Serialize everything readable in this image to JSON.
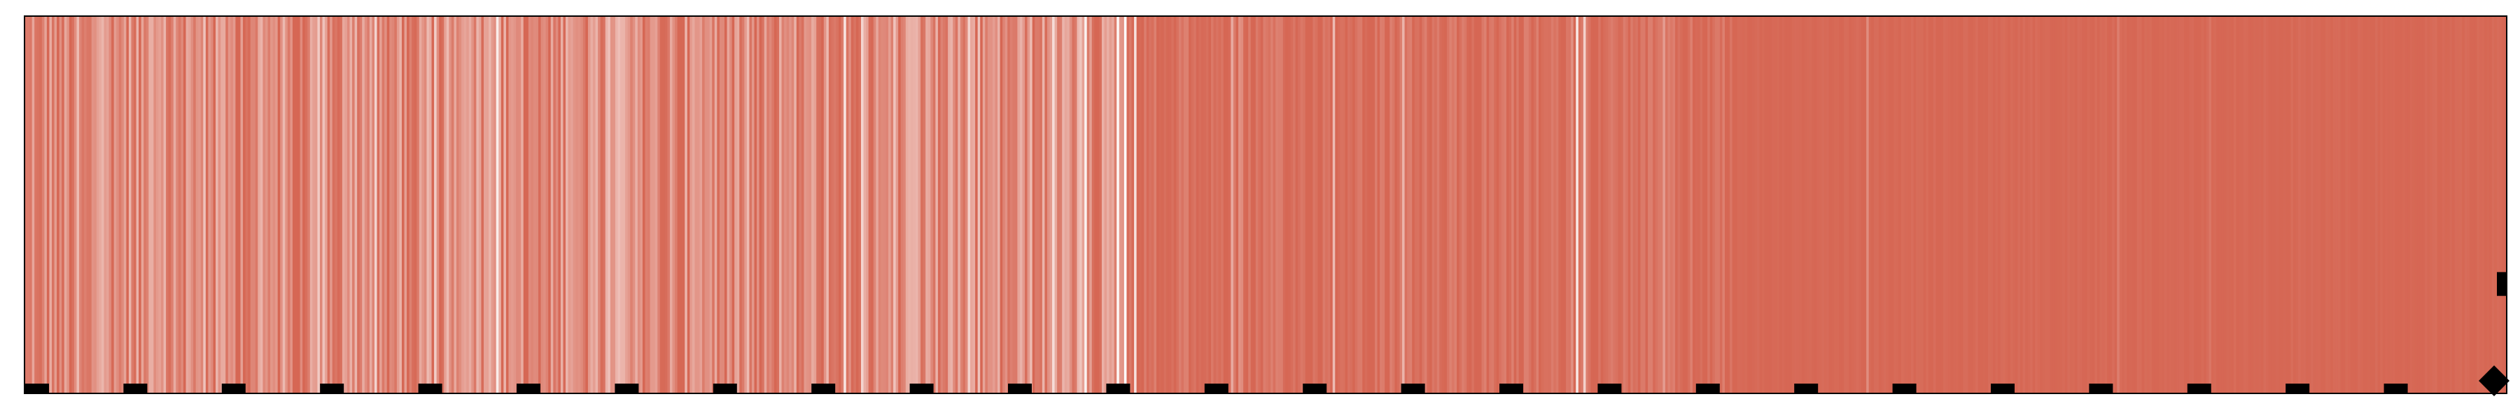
{
  "chart_data": {
    "type": "heatmap",
    "title": "",
    "xlabel": "",
    "ylabel": "",
    "grid": false,
    "legend": "none",
    "colormap": {
      "low": "#ffffff",
      "high": "#d66754"
    },
    "edge_color": "#000000",
    "n_columns": 1000,
    "value_range": [
      0,
      1
    ],
    "band_profile": [
      {
        "start": 0,
        "end": 445,
        "mean": 0.78,
        "spread": 0.3
      },
      {
        "start": 445,
        "end": 690,
        "mean": 0.95,
        "spread": 0.12
      },
      {
        "start": 690,
        "end": 1000,
        "mean": 0.99,
        "spread": 0.03
      }
    ],
    "light_stripes": [
      {
        "column": 21,
        "value": 0.45
      },
      {
        "column": 45,
        "value": 0.5
      },
      {
        "column": 72,
        "value": 0.4
      },
      {
        "column": 118,
        "value": 0.35
      },
      {
        "column": 120,
        "value": 0.4
      },
      {
        "column": 170,
        "value": 0.45
      },
      {
        "column": 238,
        "value": 0.5
      },
      {
        "column": 291,
        "value": 0.45
      },
      {
        "column": 350,
        "value": 0.4
      },
      {
        "column": 405,
        "value": 0.45
      },
      {
        "column": 440,
        "value": 0.05
      },
      {
        "column": 443,
        "value": 0.0
      },
      {
        "column": 447,
        "value": 0.2
      },
      {
        "column": 486,
        "value": 0.55
      },
      {
        "column": 527,
        "value": 0.45
      },
      {
        "column": 555,
        "value": 0.5
      },
      {
        "column": 625,
        "value": 0.15
      },
      {
        "column": 628,
        "value": 0.3
      },
      {
        "column": 660,
        "value": 0.65
      },
      {
        "column": 742,
        "value": 0.75
      },
      {
        "column": 843,
        "value": 0.85
      },
      {
        "column": 880,
        "value": 0.9
      }
    ],
    "row_markers": {
      "count": 26,
      "last_shape": "diamond"
    },
    "column_marker": {
      "shape": "square",
      "level": 0.29
    }
  }
}
